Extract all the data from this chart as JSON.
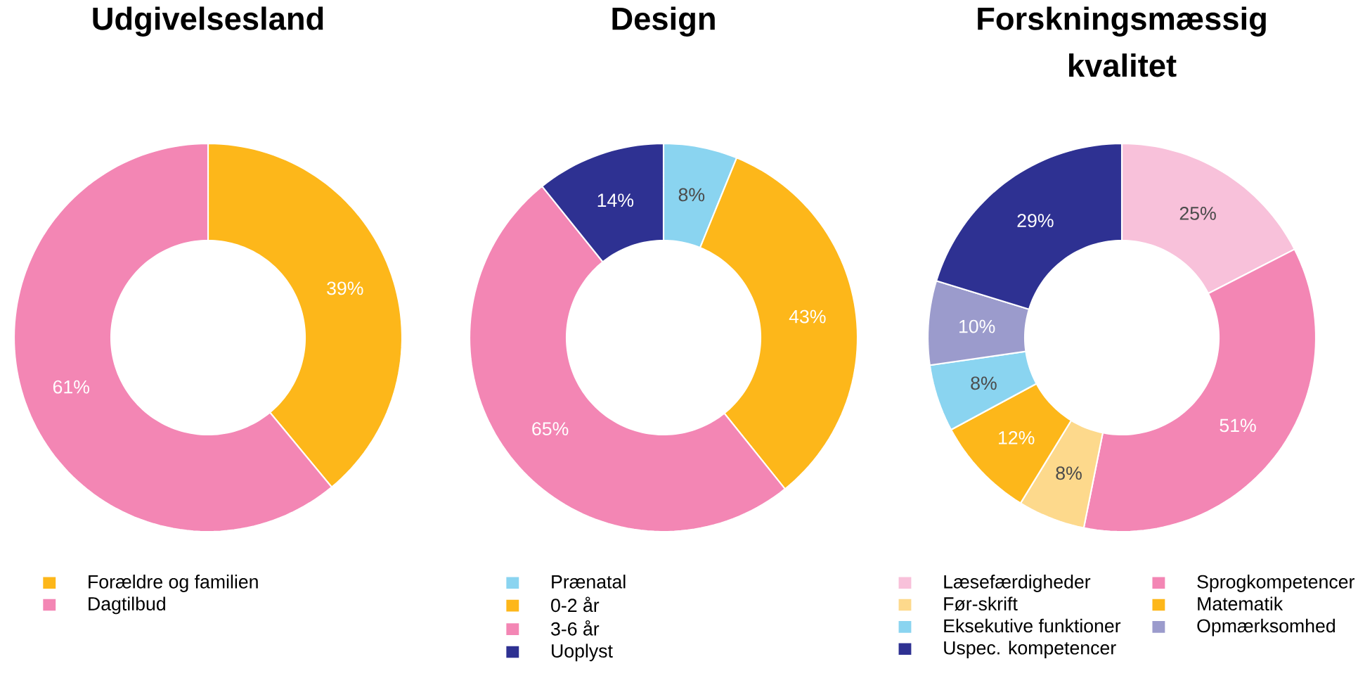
{
  "chart_data": [
    {
      "type": "donut",
      "title": "Udgivelsesland",
      "categories": [
        "Forældre og familien",
        "Dagtilbud"
      ],
      "values": [
        39,
        61
      ],
      "value_labels": [
        "39%",
        "61%"
      ],
      "colors": [
        "#fdb71a",
        "#f386b4"
      ],
      "legend": "bottom"
    },
    {
      "type": "donut",
      "title": "Design",
      "categories": [
        "Prænatal",
        "0-2 år",
        "3-6 år",
        "Uoplyst"
      ],
      "values": [
        8,
        43,
        65,
        14
      ],
      "value_labels": [
        "8%",
        "43%",
        "65%",
        "14%"
      ],
      "colors": [
        "#8ad4f0",
        "#fdb71a",
        "#f386b4",
        "#2e3192"
      ],
      "legend": "bottom"
    },
    {
      "type": "donut",
      "title": "Forskningsmæssig kvalitet",
      "categories": [
        "Læsefærdigheder",
        "Sprogkompetencer",
        "Før-skrift",
        "Matematik",
        "Eksekutive funktioner",
        "Opmærksomhed",
        "Uspec. kompetencer"
      ],
      "values": [
        25,
        51,
        8,
        12,
        8,
        10,
        29
      ],
      "value_labels": [
        "25%",
        "51%",
        "8%",
        "12%",
        "8%",
        "10%",
        "29%"
      ],
      "colors": [
        "#f8c1da",
        "#f386b4",
        "#fdd98c",
        "#fdb71a",
        "#8ad4f0",
        "#9b9bcc",
        "#2e3192"
      ],
      "legend": "bottom"
    }
  ]
}
